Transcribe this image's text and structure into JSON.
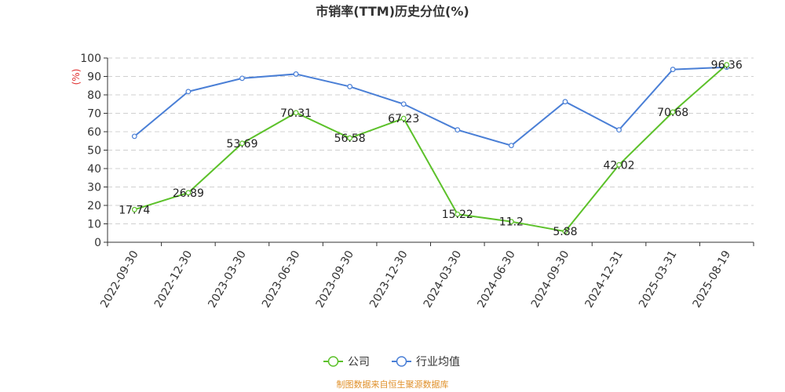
{
  "chart_data": {
    "type": "line",
    "title": "市销率(TTM)历史分位(%)",
    "ylabel": "(%)",
    "ylim": [
      0,
      100
    ],
    "yticks": [
      0,
      10,
      20,
      30,
      40,
      50,
      60,
      70,
      80,
      90,
      100
    ],
    "grid": true,
    "legend_position": "bottom-center",
    "categories": [
      "2022-09-30",
      "2022-12-30",
      "2023-03-30",
      "2023-06-30",
      "2023-09-30",
      "2023-12-30",
      "2024-03-30",
      "2024-06-30",
      "2024-09-30",
      "2024-12-31",
      "2025-03-31",
      "2025-08-19"
    ],
    "series": [
      {
        "name": "公司",
        "color": "#5cc12a",
        "values": [
          17.74,
          26.89,
          53.69,
          70.31,
          56.58,
          67.23,
          15.22,
          11.2,
          5.88,
          42.02,
          70.68,
          96.36
        ],
        "labels": [
          "17.74",
          "26.89",
          "53.69",
          "70.31",
          "56.58",
          "67.23",
          "15.22",
          "11.2",
          "5.88",
          "42.02",
          "70.68",
          "96.36"
        ]
      },
      {
        "name": "行业均值",
        "color": "#4a7fd6",
        "values": [
          57.5,
          81.8,
          89,
          91.3,
          84.5,
          75,
          61,
          52.5,
          76.3,
          61,
          93.8,
          95
        ]
      }
    ],
    "source": "制图数据来自恒生聚源数据库"
  }
}
